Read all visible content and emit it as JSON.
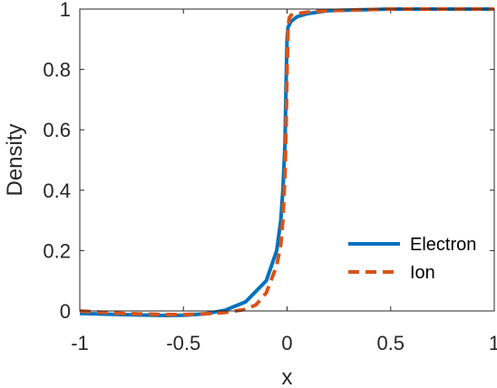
{
  "chart_data": {
    "type": "line",
    "title": "",
    "xlabel": "x",
    "ylabel": "Density",
    "xlim": [
      -1,
      1
    ],
    "ylim": [
      0,
      1
    ],
    "xticks": [
      -1,
      -0.5,
      0,
      0.5,
      1
    ],
    "xtick_labels": [
      "-1",
      "-0.5",
      "0",
      "0.5",
      "1"
    ],
    "yticks": [
      0,
      0.2,
      0.4,
      0.6,
      0.8,
      1
    ],
    "ytick_labels": [
      "0",
      "0.2",
      "0.4",
      "0.6",
      "0.8",
      "1"
    ],
    "grid": false,
    "legend_position": "bottom-right",
    "series": [
      {
        "name": "Electron",
        "color": "#0072BD",
        "style": "solid",
        "x": [
          -1,
          -0.8,
          -0.6,
          -0.5,
          -0.4,
          -0.3,
          -0.2,
          -0.1,
          -0.05,
          -0.03,
          -0.02,
          -0.01,
          -0.005,
          0,
          0.005,
          0.02,
          0.05,
          0.1,
          0.2,
          0.5,
          1
        ],
        "y": [
          -0.008,
          -0.012,
          -0.015,
          -0.014,
          -0.01,
          0.002,
          0.03,
          0.1,
          0.2,
          0.3,
          0.4,
          0.55,
          0.75,
          0.9,
          0.94,
          0.96,
          0.975,
          0.985,
          0.995,
          1.0,
          1.0
        ]
      },
      {
        "name": "Ion",
        "color": "#D95319",
        "style": "dashed",
        "x": [
          -1,
          -0.8,
          -0.6,
          -0.5,
          -0.4,
          -0.3,
          -0.2,
          -0.15,
          -0.1,
          -0.05,
          -0.03,
          -0.02,
          -0.01,
          -0.005,
          0,
          0.005,
          0.01,
          0.02,
          0.05,
          0.1,
          0.2,
          0.5,
          1
        ],
        "y": [
          0.0,
          -0.008,
          -0.012,
          -0.012,
          -0.01,
          -0.005,
          0.005,
          0.02,
          0.06,
          0.15,
          0.22,
          0.3,
          0.45,
          0.6,
          0.8,
          0.93,
          0.97,
          0.98,
          0.985,
          0.99,
          0.995,
          1.0,
          1.0
        ]
      }
    ]
  }
}
